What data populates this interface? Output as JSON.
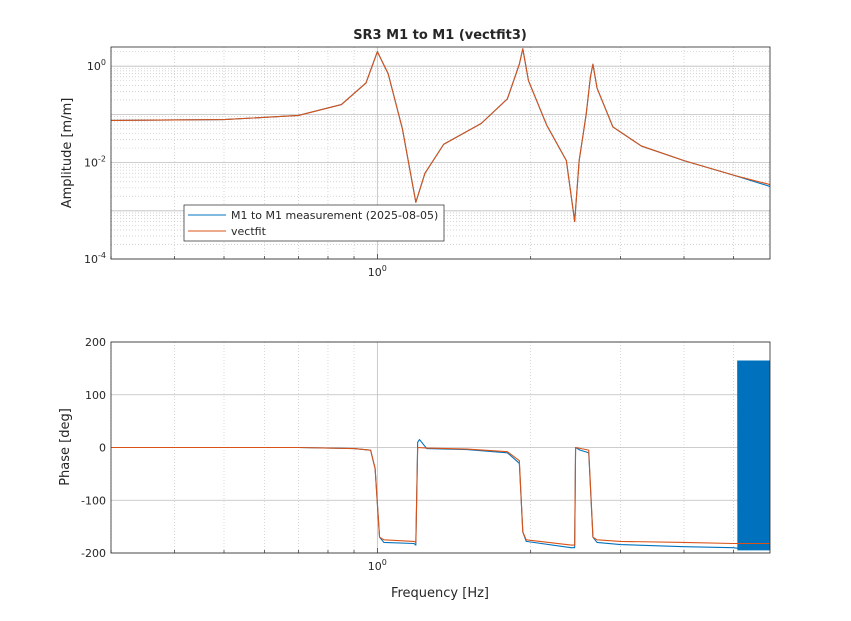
{
  "chart_data": [
    {
      "type": "line",
      "title": "SR3 M1 to M1 (vectfit3)",
      "xlabel": "",
      "ylabel": "Amplitude [m/m]",
      "xscale": "log",
      "yscale": "log",
      "xlim": [
        0.3,
        5.9
      ],
      "ylim": [
        0.0001,
        2.5
      ],
      "x_tick_labels": [
        {
          "value": 1,
          "base": "10",
          "exp": "0"
        }
      ],
      "y_tick_labels": [
        {
          "value": 1,
          "base": "10",
          "exp": "0"
        },
        {
          "value": 0.01,
          "base": "10",
          "exp": "-2"
        },
        {
          "value": 0.0001,
          "base": "10",
          "exp": "-4"
        }
      ],
      "grid": true,
      "legend": {
        "placement": "bottom-left",
        "entries": [
          "M1 to M1 measurement (2025-08-05)",
          "vectfit"
        ]
      },
      "series": [
        {
          "name": "M1 to M1 measurement (2025-08-05)",
          "color": "#0072BD",
          "points": [
            [
              0.3,
              0.075
            ],
            [
              0.5,
              0.078
            ],
            [
              0.7,
              0.095
            ],
            [
              0.85,
              0.16
            ],
            [
              0.95,
              0.45
            ],
            [
              1.0,
              2.0
            ],
            [
              1.05,
              0.7
            ],
            [
              1.12,
              0.05
            ],
            [
              1.19,
              0.0015
            ],
            [
              1.24,
              0.006
            ],
            [
              1.35,
              0.024
            ],
            [
              1.6,
              0.065
            ],
            [
              1.8,
              0.21
            ],
            [
              1.9,
              1.1
            ],
            [
              1.93,
              2.3
            ],
            [
              1.98,
              0.5
            ],
            [
              2.15,
              0.06
            ],
            [
              2.35,
              0.011
            ],
            [
              2.44,
              0.0006
            ],
            [
              2.49,
              0.011
            ],
            [
              2.57,
              0.1
            ],
            [
              2.62,
              0.6
            ],
            [
              2.65,
              1.1
            ],
            [
              2.7,
              0.35
            ],
            [
              2.9,
              0.055
            ],
            [
              3.3,
              0.022
            ],
            [
              4.0,
              0.011
            ],
            [
              5.0,
              0.0055
            ],
            [
              5.9,
              0.0032
            ]
          ]
        },
        {
          "name": "vectfit",
          "color": "#D95319",
          "points": [
            [
              0.3,
              0.075
            ],
            [
              0.5,
              0.078
            ],
            [
              0.7,
              0.095
            ],
            [
              0.85,
              0.16
            ],
            [
              0.95,
              0.45
            ],
            [
              1.0,
              2.0
            ],
            [
              1.05,
              0.7
            ],
            [
              1.12,
              0.05
            ],
            [
              1.19,
              0.0015
            ],
            [
              1.24,
              0.006
            ],
            [
              1.35,
              0.024
            ],
            [
              1.6,
              0.065
            ],
            [
              1.8,
              0.21
            ],
            [
              1.9,
              1.1
            ],
            [
              1.93,
              2.3
            ],
            [
              1.98,
              0.5
            ],
            [
              2.15,
              0.06
            ],
            [
              2.35,
              0.011
            ],
            [
              2.44,
              0.0006
            ],
            [
              2.49,
              0.011
            ],
            [
              2.57,
              0.1
            ],
            [
              2.62,
              0.6
            ],
            [
              2.65,
              1.1
            ],
            [
              2.7,
              0.35
            ],
            [
              2.9,
              0.055
            ],
            [
              3.3,
              0.022
            ],
            [
              4.0,
              0.011
            ],
            [
              5.0,
              0.0055
            ],
            [
              5.9,
              0.0035
            ]
          ]
        }
      ]
    },
    {
      "type": "line",
      "title": "",
      "xlabel": "Frequency [Hz]",
      "ylabel": "Phase [deg]",
      "xscale": "log",
      "yscale": "linear",
      "xlim": [
        0.3,
        5.9
      ],
      "ylim": [
        -200,
        200
      ],
      "x_tick_labels": [
        {
          "value": 1,
          "base": "10",
          "exp": "0"
        }
      ],
      "y_tick_labels": [
        {
          "value": 200,
          "label": "200"
        },
        {
          "value": 100,
          "label": "100"
        },
        {
          "value": 0,
          "label": "0"
        },
        {
          "value": -100,
          "label": "-100"
        },
        {
          "value": -200,
          "label": "-200"
        }
      ],
      "grid": true,
      "series": [
        {
          "name": "M1 to M1 measurement (2025-08-05)",
          "color": "#0072BD",
          "points": [
            [
              0.3,
              0
            ],
            [
              0.7,
              0
            ],
            [
              0.9,
              -2
            ],
            [
              0.97,
              -5
            ],
            [
              0.99,
              -40
            ],
            [
              1.01,
              -170
            ],
            [
              1.03,
              -180
            ],
            [
              1.18,
              -182
            ],
            [
              1.19,
              -185
            ],
            [
              1.2,
              10
            ],
            [
              1.21,
              15
            ],
            [
              1.25,
              -2
            ],
            [
              1.5,
              -4
            ],
            [
              1.8,
              -10
            ],
            [
              1.9,
              -30
            ],
            [
              1.93,
              -160
            ],
            [
              1.96,
              -178
            ],
            [
              2.4,
              -190
            ],
            [
              2.44,
              -190
            ],
            [
              2.45,
              0
            ],
            [
              2.5,
              -5
            ],
            [
              2.6,
              -10
            ],
            [
              2.65,
              -170
            ],
            [
              2.7,
              -180
            ],
            [
              3.0,
              -184
            ],
            [
              4.0,
              -188
            ],
            [
              5.0,
              -190
            ],
            [
              5.2,
              -192
            ]
          ]
        },
        {
          "name": "vectfit",
          "color": "#D95319",
          "points": [
            [
              0.3,
              0
            ],
            [
              0.7,
              0
            ],
            [
              0.9,
              -2
            ],
            [
              0.97,
              -5
            ],
            [
              0.99,
              -40
            ],
            [
              1.01,
              -170
            ],
            [
              1.03,
              -175
            ],
            [
              1.18,
              -178
            ],
            [
              1.19,
              -180
            ],
            [
              1.2,
              0
            ],
            [
              1.25,
              -1
            ],
            [
              1.5,
              -3
            ],
            [
              1.8,
              -8
            ],
            [
              1.9,
              -25
            ],
            [
              1.93,
              -160
            ],
            [
              1.96,
              -175
            ],
            [
              2.4,
              -185
            ],
            [
              2.44,
              -185
            ],
            [
              2.45,
              0
            ],
            [
              2.6,
              -5
            ],
            [
              2.65,
              -170
            ],
            [
              2.7,
              -175
            ],
            [
              3.0,
              -178
            ],
            [
              4.0,
              -180
            ],
            [
              5.0,
              -182
            ],
            [
              5.9,
              -182
            ]
          ]
        }
      ],
      "noise_band": {
        "series": "M1 to M1 measurement (2025-08-05)",
        "x_range": [
          5.1,
          5.9
        ],
        "y_range": [
          -195,
          165
        ]
      }
    }
  ]
}
